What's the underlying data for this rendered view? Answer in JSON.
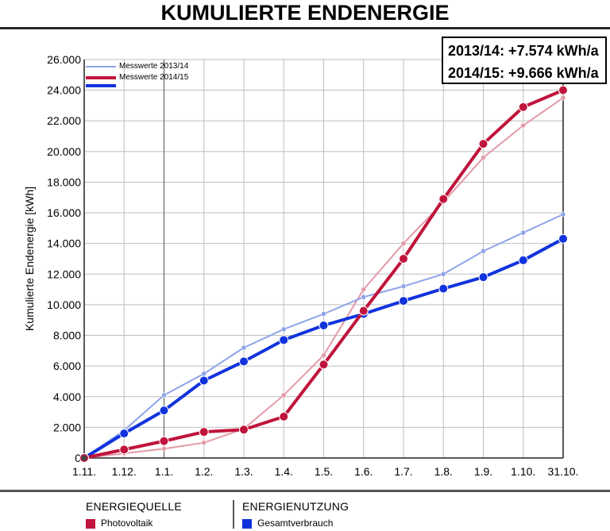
{
  "title": "KUMULIERTE ENDENERGIE",
  "summary": {
    "line1": "2013/14: +7.574 kWh/a",
    "line2": "2014/15: +9.666 kWh/a"
  },
  "legend": {
    "items": [
      "Messwerte 2013/14",
      "Messwerte 2014/15"
    ]
  },
  "footer": {
    "left_heading": "ENERGIEQUELLE",
    "left_item": "Photovoltaik",
    "right_heading": "ENERGIENUTZUNG",
    "right_item": "Gesamtverbrauch"
  },
  "colors": {
    "pv_2014_15": "#c0143c",
    "pv_2013_14": "#e39aa8",
    "use_2014_15": "#1133dd",
    "use_2013_14": "#8fa3e8"
  },
  "chart_data": {
    "type": "line",
    "title": "KUMULIERTE ENDENERGIE",
    "xlabel": "",
    "ylabel": "Kumulierte Endenergie [kWh]",
    "categories": [
      "1.11.",
      "1.12.",
      "1.1.",
      "1.2.",
      "1.3.",
      "1.4.",
      "1.5.",
      "1.6.",
      "1.7.",
      "1.8.",
      "1.9.",
      "1.10.",
      "31.10."
    ],
    "ylim": [
      0,
      26000
    ],
    "yticks": [
      0,
      2000,
      4000,
      6000,
      8000,
      10000,
      12000,
      14000,
      16000,
      18000,
      20000,
      22000,
      24000,
      26000
    ],
    "ytick_labels": [
      "0",
      "2.000",
      "4.000",
      "6.000",
      "8.000",
      "10.000",
      "12.000",
      "14.000",
      "16.000",
      "18.000",
      "20.000",
      "22.000",
      "24.000",
      "26.000"
    ],
    "grid": true,
    "legend_position": "top-left",
    "series": [
      {
        "name": "Messwerte 2013/14",
        "kind": "Photovoltaik",
        "values": [
          0,
          300,
          600,
          1000,
          1900,
          4100,
          6700,
          11000,
          14000,
          16700,
          19600,
          21700,
          23500
        ]
      },
      {
        "name": "Messwerte 2013/14",
        "kind": "Gesamtverbrauch",
        "values": [
          0,
          1800,
          4100,
          5500,
          7200,
          8400,
          9400,
          10500,
          11200,
          12000,
          13500,
          14700,
          15900
        ]
      },
      {
        "name": "Messwerte 2014/15",
        "kind": "Photovoltaik",
        "values": [
          0,
          550,
          1100,
          1700,
          1850,
          2700,
          6100,
          9600,
          13000,
          16900,
          20500,
          22900,
          24000
        ]
      },
      {
        "name": "Messwerte 2014/15",
        "kind": "Gesamtverbrauch",
        "values": [
          0,
          1600,
          3100,
          5050,
          6300,
          7700,
          8650,
          9400,
          10250,
          11050,
          11800,
          12900,
          14300
        ]
      }
    ]
  }
}
